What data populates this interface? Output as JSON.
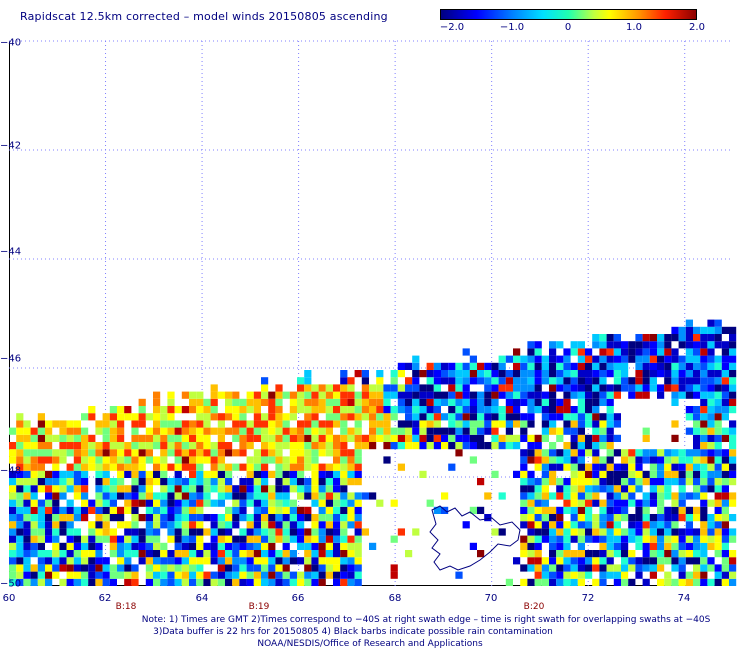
{
  "title": "Rapidscat 12.5km corrected – model winds 20150805 ascending",
  "colorbar": {
    "labels": [
      "−2.0",
      "−1.0",
      "0",
      "1.0",
      "2.0"
    ],
    "values": [
      -2.0,
      -1.0,
      0,
      1.0,
      2.0
    ]
  },
  "map": {
    "lat_labels": [
      "−40",
      "−42",
      "−44",
      "−46",
      "−48",
      "−50"
    ],
    "lon_labels": [
      "60",
      "62",
      "64",
      "66",
      "68",
      "70",
      "72",
      "74"
    ],
    "lat_values": [
      -40,
      -42,
      -44,
      -46,
      -48,
      -50
    ],
    "lon_values": [
      60,
      62,
      64,
      66,
      68,
      70,
      72,
      74
    ],
    "time_labels": [
      {
        "text": "B:18",
        "lon": 62.3
      },
      {
        "text": "B:19",
        "lon": 65.0
      },
      {
        "text": "B:20",
        "lon": 70.9
      }
    ]
  },
  "notes": {
    "line1": "Note: 1) Times are GMT 2)Times correspond to −40S at right swath edge – time is right swath for overlapping swaths at −40S",
    "line2": "3)Data buffer is 22 hrs for 20150805 4) Black barbs indicate possible rain contamination",
    "line3": "NOAA/NESDIS/Office of Research and Applications"
  }
}
